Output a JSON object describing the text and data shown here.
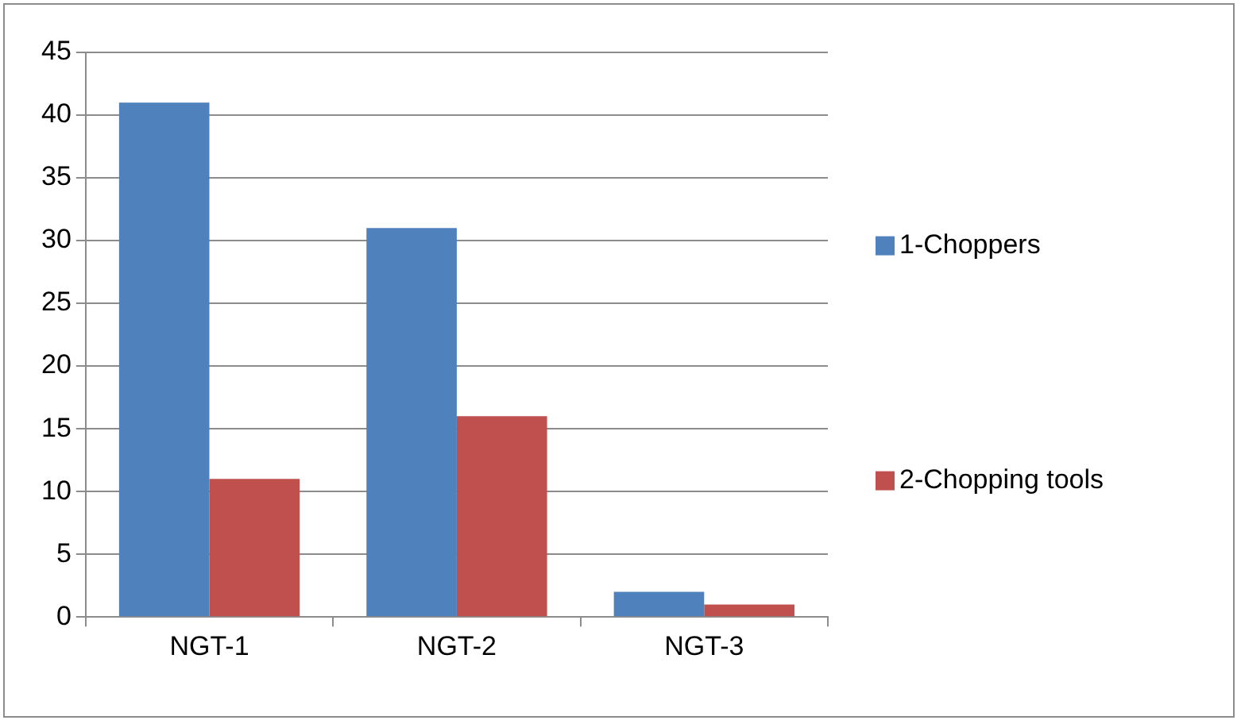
{
  "chart_data": {
    "type": "bar",
    "categories": [
      "NGT-1",
      "NGT-2",
      "NGT-3"
    ],
    "series": [
      {
        "name": "1-Choppers",
        "color": "#4f81bd",
        "values": [
          41,
          31,
          2
        ]
      },
      {
        "name": "2-Chopping tools",
        "color": "#c0504d",
        "values": [
          11,
          16,
          1
        ]
      }
    ],
    "ylim": [
      0,
      45
    ],
    "yticks": [
      0,
      5,
      10,
      15,
      20,
      25,
      30,
      35,
      40,
      45
    ],
    "grid": "y",
    "legend": "right"
  }
}
